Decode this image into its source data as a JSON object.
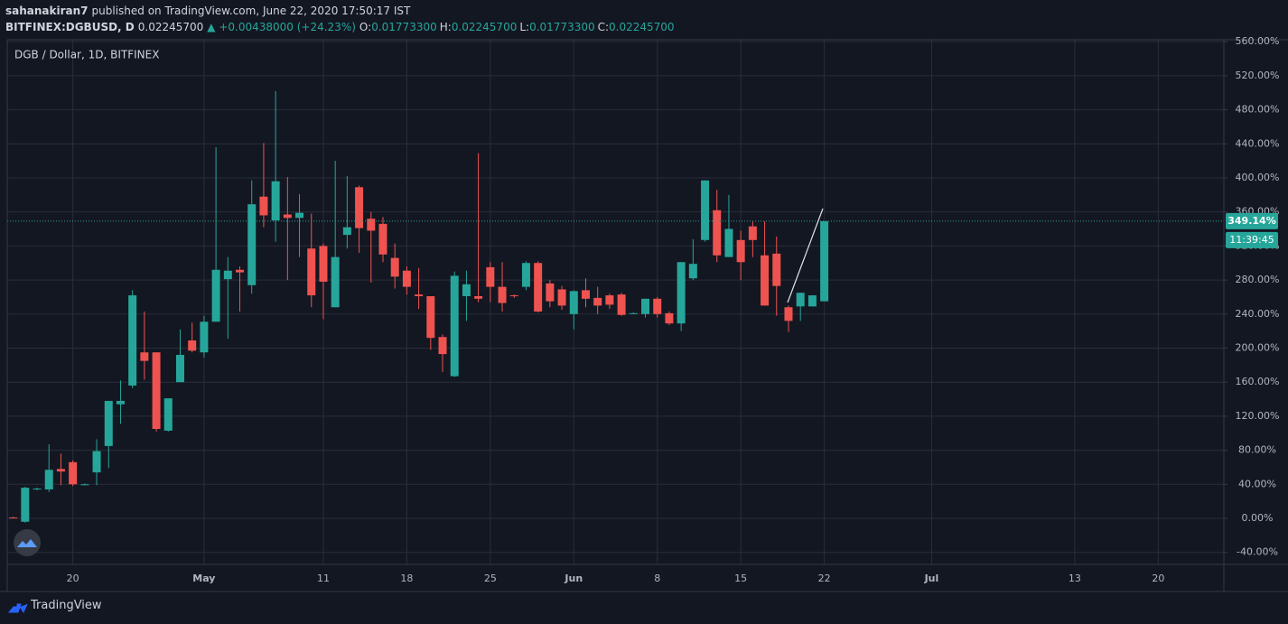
{
  "header": {
    "author": "sahanakiran7",
    "published": "published on TradingView.com, June 22, 2020 17:50:17 IST",
    "symbol": "BITFINEX:DGBUSD, D",
    "price": "0.02245700",
    "change": "▲ +0.00438000 (+24.23%)",
    "ohlc": [
      {
        "label": "O:",
        "value": "0.01773300"
      },
      {
        "label": "H:",
        "value": "0.02245700"
      },
      {
        "label": "L:",
        "value": "0.01773300"
      },
      {
        "label": "C:",
        "value": "0.02245700"
      }
    ]
  },
  "chart_data": {
    "type": "candlestick",
    "title": "DGB / Dollar, 1D, BITFINEX",
    "up_color": "#26a69a",
    "down_color": "#ef5350",
    "grid": true,
    "categories": [
      null,
      null,
      null,
      null,
      null,
      "20",
      null,
      null,
      null,
      null,
      null,
      null,
      null,
      null,
      null,
      null,
      "May",
      null,
      null,
      null,
      null,
      null,
      null,
      null,
      null,
      null,
      "11",
      null,
      null,
      null,
      null,
      null,
      null,
      "18",
      null,
      null,
      null,
      null,
      null,
      null,
      "25",
      null,
      null,
      null,
      null,
      null,
      null,
      "Jun",
      null,
      null,
      null,
      null,
      null,
      null,
      "8",
      null,
      null,
      null,
      null,
      null,
      null,
      "15",
      null,
      null,
      null,
      null,
      null,
      null,
      "22",
      null,
      null,
      null,
      null,
      null,
      null,
      null,
      null,
      "Jul",
      null,
      null,
      null,
      null,
      null,
      null,
      null,
      null,
      null,
      null,
      null,
      "13",
      null,
      null,
      null,
      null,
      null,
      null,
      "20",
      null,
      null,
      null,
      null,
      null
    ],
    "open": [
      1,
      -4,
      34,
      34,
      58,
      66,
      40,
      54,
      85,
      134,
      156,
      195,
      195,
      103,
      160,
      209,
      195,
      231,
      281,
      292,
      274,
      378,
      350,
      357,
      353,
      317,
      320,
      248,
      333,
      389,
      352,
      346,
      306,
      291,
      263,
      261,
      213,
      167,
      261,
      261,
      295,
      272,
      262,
      272,
      300,
      276,
      269,
      240,
      268,
      259,
      262,
      263,
      241,
      240,
      258,
      241,
      229,
      282,
      327,
      362,
      307,
      327,
      343,
      309,
      311,
      248,
      249,
      249,
      255,
      null,
      null,
      null,
      null,
      null,
      null,
      null,
      null,
      null,
      null,
      null,
      null,
      null,
      null,
      null,
      null,
      null,
      null,
      null,
      null,
      null,
      null,
      null,
      null,
      null,
      null,
      null,
      null,
      null,
      null,
      null,
      null,
      null
    ],
    "high": [
      2,
      37,
      36,
      87,
      76,
      68,
      41,
      93,
      138,
      162,
      268,
      243,
      195,
      141,
      222,
      230,
      238,
      436,
      307,
      296,
      397,
      441,
      502,
      401,
      381,
      358,
      323,
      420,
      402,
      391,
      360,
      354,
      323,
      296,
      294,
      261,
      216,
      290,
      291,
      429,
      301,
      301,
      263,
      302,
      302,
      280,
      273,
      268,
      282,
      272,
      264,
      265,
      242,
      258,
      260,
      243,
      301,
      328,
      397,
      386,
      380,
      338,
      349,
      349,
      331,
      250,
      265,
      262,
      349.14,
      null,
      null,
      null,
      null,
      null,
      null,
      null,
      null,
      null,
      null,
      null,
      null,
      null,
      null,
      null,
      null,
      null,
      null,
      null,
      null,
      null,
      null,
      null,
      null,
      null,
      null,
      null,
      null,
      null,
      null,
      null,
      null,
      null
    ],
    "low": [
      0,
      -5,
      33,
      31,
      39,
      38,
      39,
      39,
      59,
      111,
      153,
      163,
      102,
      102,
      160,
      195,
      189,
      231,
      211,
      243,
      264,
      342,
      325,
      280,
      307,
      248,
      234,
      248,
      317,
      312,
      277,
      301,
      270,
      263,
      246,
      198,
      172,
      166,
      232,
      254,
      254,
      243,
      259,
      268,
      242,
      248,
      245,
      222,
      248,
      240,
      246,
      238,
      240,
      236,
      236,
      227,
      220,
      280,
      325,
      301,
      307,
      280,
      307,
      250,
      238,
      219,
      232,
      249,
      255,
      null,
      null,
      null,
      null,
      null,
      null,
      null,
      null,
      null,
      null,
      null,
      null,
      null,
      null,
      null,
      null,
      null,
      null,
      null,
      null,
      null,
      null,
      null,
      null,
      null,
      null,
      null,
      null,
      null,
      null,
      null,
      null,
      null
    ],
    "close": [
      0,
      36,
      35,
      57,
      55,
      40,
      40,
      79,
      138,
      138,
      262,
      185,
      105,
      141,
      192,
      197,
      231,
      292,
      291,
      289,
      369,
      356,
      396,
      353,
      359,
      262,
      278,
      307,
      342,
      341,
      338,
      310,
      284,
      272,
      261,
      212,
      193,
      285,
      275,
      258,
      272,
      253,
      261,
      300,
      243,
      255,
      250,
      267,
      258,
      250,
      251,
      239,
      241,
      258,
      240,
      229,
      301,
      299,
      397,
      309,
      340,
      301,
      327,
      250,
      273,
      232,
      265,
      262,
      349.14,
      null,
      null,
      null,
      null,
      null,
      null,
      null,
      null,
      null,
      null,
      null,
      null,
      null,
      null,
      null,
      null,
      null,
      null,
      null,
      null,
      null,
      null,
      null,
      null,
      null,
      null,
      null,
      null,
      null,
      null,
      null,
      null,
      null
    ],
    "ylim": [
      -54.1,
      562.3
    ],
    "yticks": [
      {
        "value": -40,
        "label": "-40.00%"
      },
      {
        "value": 0,
        "label": "0.00%"
      },
      {
        "value": 40,
        "label": "40.00%"
      },
      {
        "value": 80,
        "label": "80.00%"
      },
      {
        "value": 120,
        "label": "120.00%"
      },
      {
        "value": 160,
        "label": "160.00%"
      },
      {
        "value": 200,
        "label": "200.00%"
      },
      {
        "value": 240,
        "label": "240.00%"
      },
      {
        "value": 280,
        "label": "280.00%"
      },
      {
        "value": 320,
        "label": "320.00%"
      },
      {
        "value": 360,
        "label": "360.00%"
      },
      {
        "value": 400,
        "label": "400.00%"
      },
      {
        "value": 440,
        "label": "440.00%"
      },
      {
        "value": 480,
        "label": "480.00%"
      },
      {
        "value": 520,
        "label": "520.00%"
      },
      {
        "value": 560,
        "label": "560.00%"
      }
    ],
    "last_price": {
      "value": 349.14,
      "label": "349.14%"
    },
    "countdown": "11:39:45"
  },
  "footer": {
    "brand": "TradingView"
  }
}
